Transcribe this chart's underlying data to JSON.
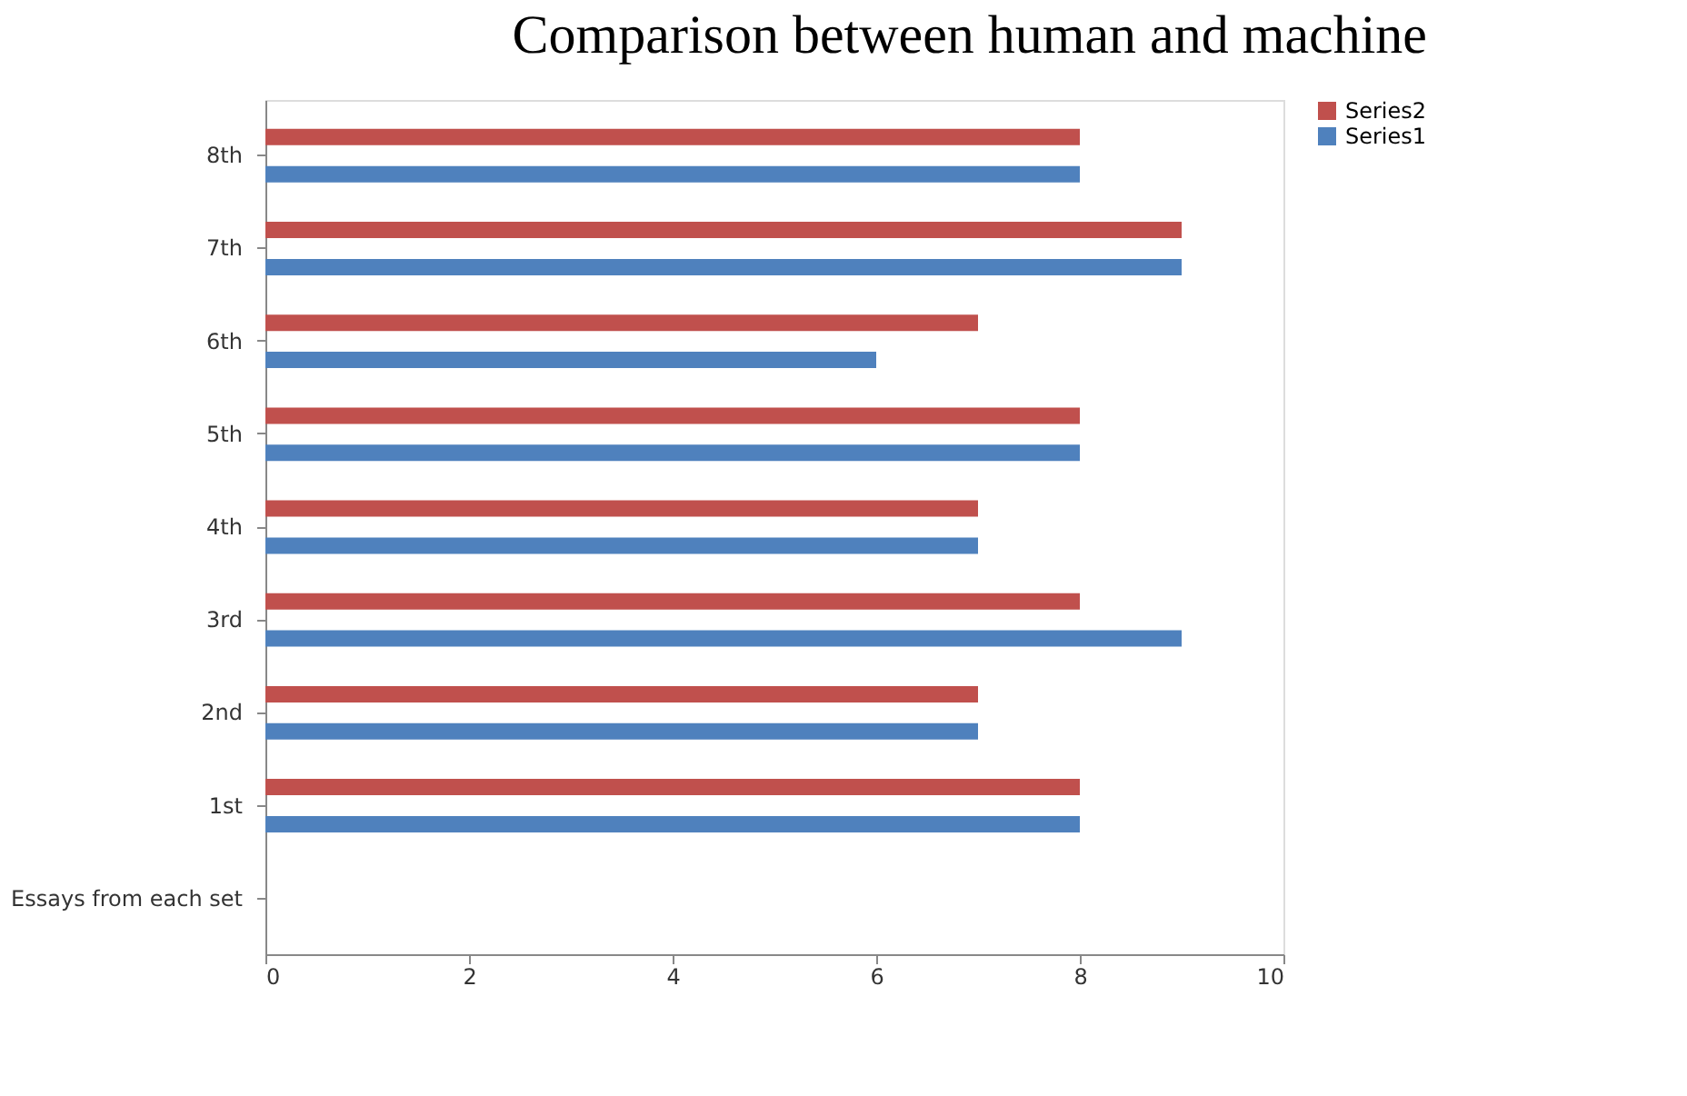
{
  "chart_data": {
    "type": "bar",
    "orientation": "horizontal",
    "title": "Comparison between human and machine",
    "categories": [
      "8th",
      "7th",
      "6th",
      "5th",
      "4th",
      "3rd",
      "2nd",
      "1st",
      "Essays from each set"
    ],
    "series": [
      {
        "name": "Series2",
        "color": "#c0504d",
        "values": [
          8,
          9,
          7,
          8,
          7,
          8,
          7,
          8,
          null
        ]
      },
      {
        "name": "Series1",
        "color": "#4f81bd",
        "values": [
          8,
          9,
          6,
          8,
          7,
          9,
          7,
          8,
          null
        ]
      }
    ],
    "xlim": [
      0,
      10
    ],
    "xticks": [
      0,
      2,
      4,
      6,
      8,
      10
    ],
    "grid": false,
    "legend": "right"
  }
}
